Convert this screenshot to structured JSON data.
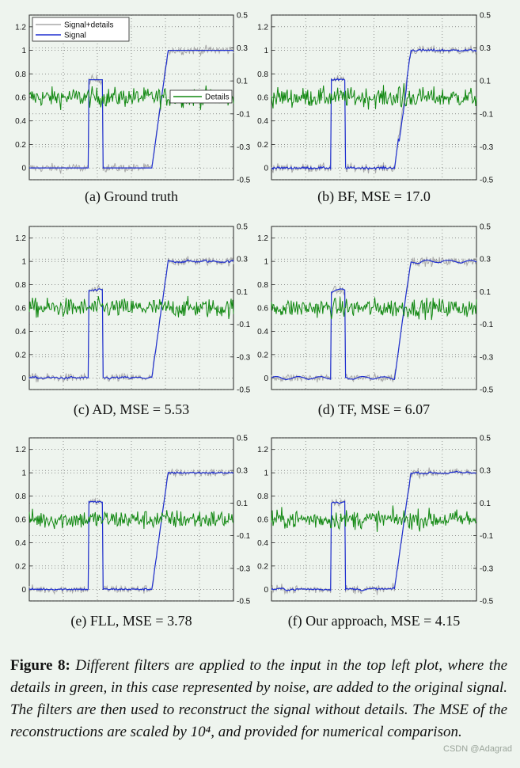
{
  "chart_data": [
    {
      "id": "a",
      "type": "line",
      "caption": "(a)  Ground truth",
      "method": "ground-truth",
      "left_axis": {
        "ylim": [
          -0.1,
          1.3
        ],
        "ticks": [
          "1.2",
          "1",
          "0.8",
          "0.6",
          "0.4",
          "0.2",
          "0"
        ]
      },
      "right_axis": {
        "ylim": [
          -0.5,
          0.5
        ],
        "ticks": [
          "0.5",
          "0.3",
          "0.1",
          "-0.1",
          "-0.3",
          "-0.5"
        ]
      },
      "grid": true,
      "legend": [
        {
          "name": "Signal+details",
          "color": "#a8a8a8",
          "placement": "top-left"
        },
        {
          "name": "Signal",
          "color": "#1f2fd0",
          "placement": "top-left"
        },
        {
          "name": "Details",
          "color": "#118811",
          "placement": "right"
        }
      ],
      "signal": {
        "pulse_start": 0.29,
        "pulse_end": 0.36,
        "pulse_level": 0.75,
        "step_center": 0.64,
        "step_level": 1.0
      }
    },
    {
      "id": "b",
      "type": "line",
      "caption": "(b)  BF, MSE = 17.0",
      "method": "BF",
      "left_axis": {
        "ylim": [
          -0.1,
          1.3
        ],
        "ticks": [
          "1.2",
          "1",
          "0.8",
          "0.6",
          "0.4",
          "0.2",
          "0"
        ]
      },
      "right_axis": {
        "ylim": [
          -0.5,
          0.5
        ],
        "ticks": [
          "0.5",
          "0.3",
          "0.1",
          "-0.1",
          "-0.3",
          "-0.5"
        ]
      },
      "grid": true,
      "signal": {
        "pulse_start": 0.29,
        "pulse_end": 0.36,
        "pulse_level": 0.75,
        "step_center": 0.64,
        "step_level": 1.0
      }
    },
    {
      "id": "c",
      "type": "line",
      "caption": "(c)  AD, MSE = 5.53",
      "method": "AD",
      "left_axis": {
        "ylim": [
          -0.1,
          1.3
        ],
        "ticks": [
          "1.2",
          "1",
          "0.8",
          "0.6",
          "0.4",
          "0.2",
          "0"
        ]
      },
      "right_axis": {
        "ylim": [
          -0.5,
          0.5
        ],
        "ticks": [
          "0.5",
          "0.3",
          "0.1",
          "-0.1",
          "-0.3",
          "-0.5"
        ]
      },
      "grid": true,
      "signal": {
        "pulse_start": 0.29,
        "pulse_end": 0.36,
        "pulse_level": 0.75,
        "step_center": 0.64,
        "step_level": 1.0
      }
    },
    {
      "id": "d",
      "type": "line",
      "caption": "(d)  TF, MSE = 6.07",
      "method": "TF",
      "left_axis": {
        "ylim": [
          -0.1,
          1.3
        ],
        "ticks": [
          "1.2",
          "1",
          "0.8",
          "0.6",
          "0.4",
          "0.2",
          "0"
        ]
      },
      "right_axis": {
        "ylim": [
          -0.5,
          0.5
        ],
        "ticks": [
          "0.5",
          "0.3",
          "0.1",
          "-0.1",
          "-0.3",
          "-0.5"
        ]
      },
      "grid": true,
      "signal": {
        "pulse_start": 0.29,
        "pulse_end": 0.36,
        "pulse_level": 0.75,
        "step_center": 0.64,
        "step_level": 1.0
      }
    },
    {
      "id": "e",
      "type": "line",
      "caption": "(e)  FLL, MSE = 3.78",
      "method": "FLL",
      "left_axis": {
        "ylim": [
          -0.1,
          1.3
        ],
        "ticks": [
          "1.2",
          "1",
          "0.8",
          "0.6",
          "0.4",
          "0.2",
          "0"
        ]
      },
      "right_axis": {
        "ylim": [
          -0.5,
          0.5
        ],
        "ticks": [
          "0.5",
          "0.3",
          "0.1",
          "-0.1",
          "-0.3",
          "-0.5"
        ]
      },
      "grid": true,
      "signal": {
        "pulse_start": 0.29,
        "pulse_end": 0.36,
        "pulse_level": 0.75,
        "step_center": 0.64,
        "step_level": 1.0
      }
    },
    {
      "id": "f",
      "type": "line",
      "caption": "(f)  Our approach, MSE = 4.15",
      "method": "ours",
      "left_axis": {
        "ylim": [
          -0.1,
          1.3
        ],
        "ticks": [
          "1.2",
          "1",
          "0.8",
          "0.6",
          "0.4",
          "0.2",
          "0"
        ]
      },
      "right_axis": {
        "ylim": [
          -0.5,
          0.5
        ],
        "ticks": [
          "0.5",
          "0.3",
          "0.1",
          "-0.1",
          "-0.3",
          "-0.5"
        ]
      },
      "grid": true,
      "signal": {
        "pulse_start": 0.29,
        "pulse_end": 0.36,
        "pulse_level": 0.75,
        "step_center": 0.64,
        "step_level": 1.0
      }
    }
  ],
  "colors": {
    "noisy": "#a8a8a8",
    "signal": "#1f2fd0",
    "details": "#118811",
    "grid": "#555555"
  },
  "figure_caption": {
    "lead": "Figure 8:",
    "body": "Different filters are applied to the input in the top left plot, where the details in green, in this case represented by noise, are added to the original signal. The filters are then used to reconstruct the signal without details. The MSE of the reconstructions are scaled by 10⁴, and provided for numerical comparison."
  },
  "watermark": "CSDN @Adagrad"
}
